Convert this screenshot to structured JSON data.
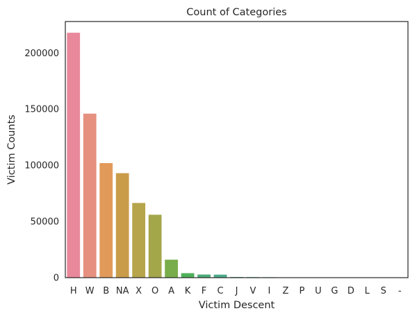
{
  "chart_data": {
    "type": "bar",
    "title": "Count of Categories",
    "xlabel": "Victim Descent",
    "ylabel": "Victim Counts",
    "categories": [
      "H",
      "W",
      "B",
      "NA",
      "X",
      "O",
      "A",
      "K",
      "F",
      "C",
      "J",
      "V",
      "I",
      "Z",
      "P",
      "U",
      "G",
      "D",
      "L",
      "S",
      "-"
    ],
    "values": [
      218000,
      146000,
      102000,
      93000,
      66500,
      56000,
      16000,
      4000,
      2800,
      2700,
      600,
      500,
      400,
      200,
      150,
      100,
      80,
      60,
      40,
      30,
      10
    ],
    "colors": [
      "#e8889a",
      "#e69080",
      "#e29a5a",
      "#c99c4a",
      "#b6a54a",
      "#a4a64a",
      "#79ad4b",
      "#4fb05a",
      "#4dab78",
      "#4cab8a",
      "#4aa997",
      "#4aa7a4",
      "#4ca6b3",
      "#50a3c3",
      "#5aa0d5",
      "#7a9be3",
      "#9d93e8",
      "#bf89e6",
      "#dc82d9",
      "#e883c2",
      "#e886ae"
    ],
    "ylim": [
      0,
      228000
    ],
    "yticks": [
      0,
      50000,
      100000,
      150000,
      200000
    ],
    "grid": false,
    "legend": false
  }
}
